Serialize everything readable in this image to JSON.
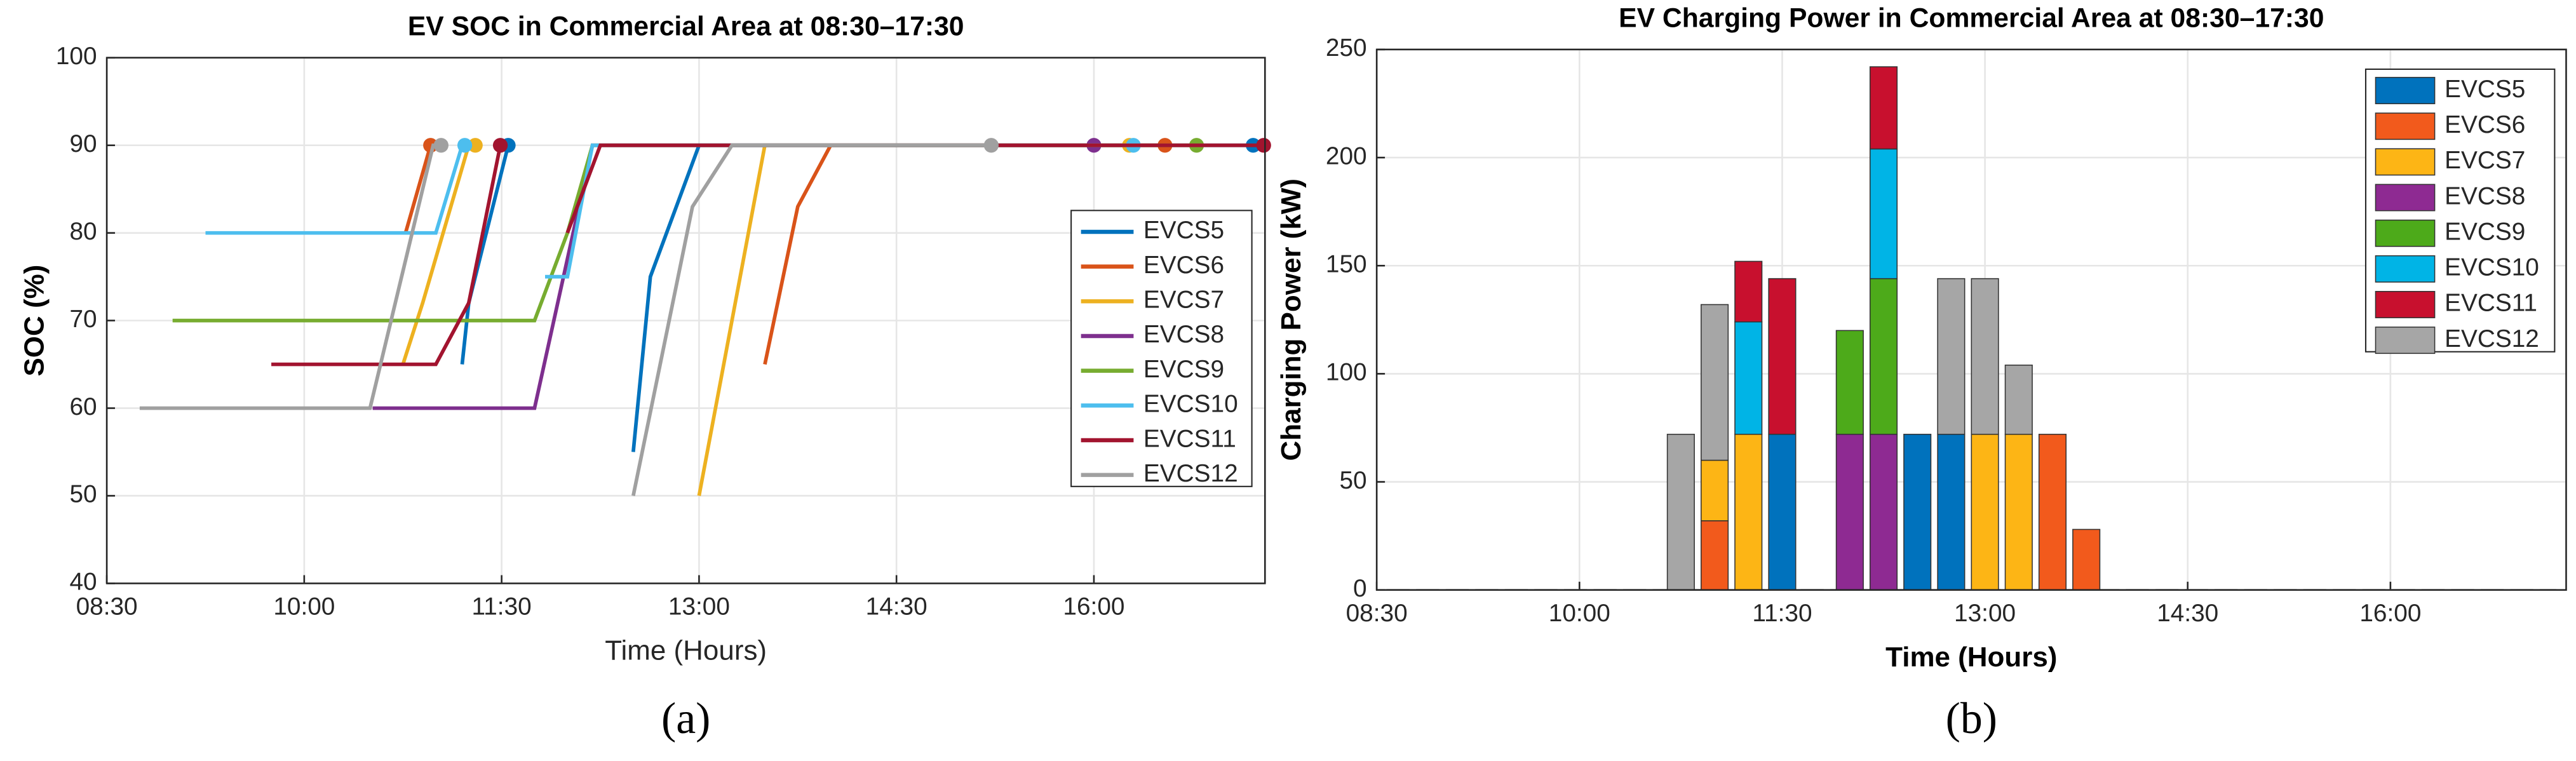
{
  "chart_data": [
    {
      "type": "line",
      "title": "EV SOC in Commercial Area at 08:30–17:30",
      "xlabel": "Time (Hours)",
      "ylabel": "SOC (%)",
      "caption": "(a)",
      "xlim": [
        8.5,
        17.3
      ],
      "ylim": [
        40,
        100
      ],
      "xticks": [
        {
          "value": 8.5,
          "label": "08:30"
        },
        {
          "value": 10,
          "label": "10:00"
        },
        {
          "value": 11.5,
          "label": "11:30"
        },
        {
          "value": 13,
          "label": "13:00"
        },
        {
          "value": 14.5,
          "label": "14:30"
        },
        {
          "value": 16,
          "label": "16:00"
        }
      ],
      "yticks": [
        40,
        50,
        60,
        70,
        80,
        90,
        100
      ],
      "grid": true,
      "legend": "right",
      "series": [
        {
          "name": "EVCS5",
          "color": "#0072BD",
          "x": [
            11.2,
            11.25,
            11.55,
            12,
            12.5,
            12.63,
            13.0,
            17.21
          ],
          "values": [
            65,
            72,
            90,
            null,
            55,
            75,
            90,
            90
          ]
        },
        {
          "name": "EVCS6",
          "color": "#D95319",
          "x": [
            10.77,
            10.96,
            12,
            13.5,
            13.75,
            14.0,
            16.54
          ],
          "values": [
            80,
            90,
            null,
            65,
            83,
            90,
            90
          ]
        },
        {
          "name": "EVCS7",
          "color": "#EDB120",
          "x": [
            10.75,
            10.9,
            11.25,
            11.3,
            12,
            13.0,
            13.5,
            16.27
          ],
          "values": [
            65,
            72,
            90,
            90,
            null,
            50,
            90,
            90
          ]
        },
        {
          "name": "EVCS8",
          "color": "#7E2F8E",
          "x": [
            10.52,
            11.75,
            12.19,
            16.0
          ],
          "values": [
            60,
            60,
            90,
            90
          ]
        },
        {
          "name": "EVCS9",
          "color": "#77AC30",
          "x": [
            9.0,
            11.75,
            12.0,
            12.19,
            16.78
          ],
          "values": [
            70,
            70,
            80,
            90,
            90
          ]
        },
        {
          "name": "EVCS10",
          "color": "#4DBEEE",
          "x": [
            9.25,
            11.0,
            11.2,
            11.22,
            11.5,
            11.83,
            12.0,
            12.19,
            16.3
          ],
          "values": [
            80,
            80,
            90,
            90,
            null,
            75,
            75,
            90,
            90
          ]
        },
        {
          "name": "EVCS11",
          "color": "#A2142F",
          "x": [
            9.75,
            11.0,
            11.25,
            11.49,
            11.7,
            12.0,
            12.25,
            17.29
          ],
          "values": [
            65,
            65,
            72,
            90,
            null,
            80,
            90,
            90
          ]
        },
        {
          "name": "EVCS12",
          "color": "#A0A0A0",
          "x": [
            8.75,
            10.5,
            10.98,
            11.04,
            12,
            12.5,
            12.95,
            13.25,
            15.22
          ],
          "values": [
            60,
            60,
            90,
            90,
            null,
            50,
            83,
            90,
            90
          ]
        }
      ]
    },
    {
      "type": "stacked_bar",
      "title": "EV Charging Power in Commercial Area at 08:30–17:30",
      "xlabel": "Time (Hours)",
      "ylabel": "Charging Power (kW)",
      "caption": "(b)",
      "xlim": [
        8.5,
        17.3
      ],
      "ylim": [
        0,
        250
      ],
      "xticks": [
        {
          "value": 8.5,
          "label": "08:30"
        },
        {
          "value": 10,
          "label": "10:00"
        },
        {
          "value": 11.5,
          "label": "11:30"
        },
        {
          "value": 13,
          "label": "13:00"
        },
        {
          "value": 14.5,
          "label": "14:30"
        },
        {
          "value": 16,
          "label": "16:00"
        }
      ],
      "yticks": [
        0,
        50,
        100,
        150,
        200,
        250
      ],
      "grid": true,
      "legend": "upper right",
      "x": [
        10.75,
        11,
        11.25,
        11.5,
        11.75,
        12,
        12.25,
        12.5,
        12.75,
        13,
        13.25,
        13.5,
        13.75
      ],
      "series": [
        {
          "name": "EVCS5",
          "color": "#0072BD",
          "values": [
            0,
            0,
            0,
            72,
            0,
            0,
            0,
            72,
            72,
            0,
            0,
            0,
            0
          ]
        },
        {
          "name": "EVCS6",
          "color": "#F25A1C",
          "values": [
            0,
            32,
            0,
            0,
            0,
            0,
            0,
            0,
            0,
            0,
            0,
            72,
            28
          ]
        },
        {
          "name": "EVCS7",
          "color": "#FDB515",
          "values": [
            0,
            28,
            72,
            0,
            0,
            0,
            0,
            0,
            0,
            72,
            72,
            0,
            0
          ]
        },
        {
          "name": "EVCS8",
          "color": "#8E2A92",
          "values": [
            0,
            0,
            0,
            0,
            0,
            72,
            72,
            0,
            0,
            0,
            0,
            0,
            0
          ]
        },
        {
          "name": "EVCS9",
          "color": "#4DAA1A",
          "values": [
            0,
            0,
            0,
            0,
            0,
            48,
            72,
            0,
            0,
            0,
            0,
            0,
            0
          ]
        },
        {
          "name": "EVCS10",
          "color": "#00B4E6",
          "values": [
            0,
            0,
            52,
            0,
            0,
            0,
            60,
            0,
            0,
            0,
            0,
            0,
            0
          ]
        },
        {
          "name": "EVCS11",
          "color": "#C8102E",
          "values": [
            0,
            0,
            28,
            72,
            0,
            0,
            38,
            0,
            0,
            0,
            0,
            0,
            0
          ]
        },
        {
          "name": "EVCS12",
          "color": "#A6A6A6",
          "values": [
            72,
            72,
            0,
            0,
            0,
            0,
            0,
            0,
            72,
            72,
            32,
            0,
            0
          ]
        }
      ]
    }
  ]
}
